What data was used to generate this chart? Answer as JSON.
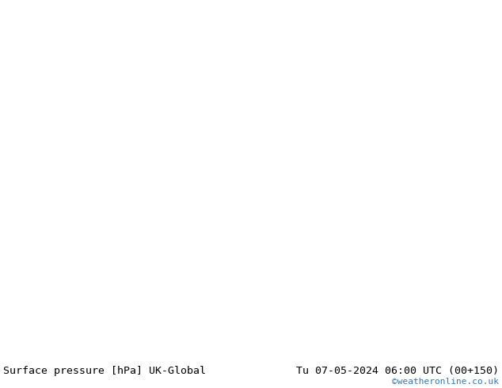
{
  "title_left": "Surface pressure [hPa] UK-Global",
  "title_right": "Tu 07-05-2024 06:00 UTC (00+150)",
  "watermark": "©weatheronline.co.uk",
  "bg_color": "#e0e0e8",
  "land_color": "#c8e8a0",
  "water_color": "#d8d8e8",
  "bottom_bar_color": "#c8c8c8",
  "text_color": "#000000",
  "watermark_color": "#3377bb",
  "title_fontsize": 9.5,
  "watermark_fontsize": 8,
  "figsize": [
    6.34,
    4.9
  ],
  "dpi": 100,
  "red": "#cc0000",
  "black": "#000000",
  "blue": "#0055cc"
}
